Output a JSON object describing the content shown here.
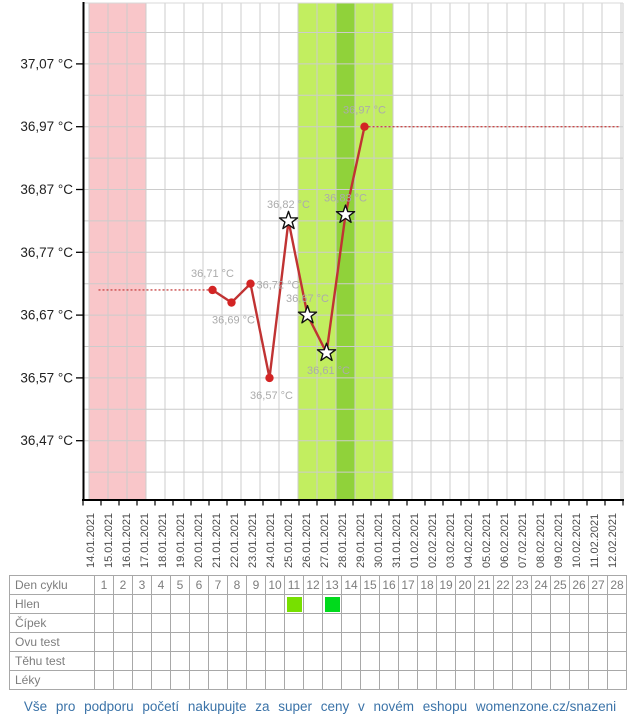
{
  "footer": {
    "text": "Vše pro podporu početí nakupujte za super ceny v novém eshopu womenzone.cz/snazeni",
    "color": "#3b73a8"
  },
  "table": {
    "header": {
      "label": "Den cyklu",
      "day_numbers": [
        "1",
        "2",
        "3",
        "4",
        "5",
        "6",
        "7",
        "8",
        "9",
        "10",
        "11",
        "12",
        "13",
        "14",
        "15",
        "16",
        "17",
        "18",
        "19",
        "20",
        "21",
        "22",
        "23",
        "24",
        "25",
        "26",
        "27",
        "28"
      ]
    },
    "rows": [
      {
        "key": "hlen",
        "label": "Hlen",
        "marks": [
          {
            "day": 11,
            "color": "#77e000"
          },
          {
            "day": 13,
            "color": "#00da1c"
          }
        ]
      },
      {
        "key": "cipek",
        "label": "Čípek",
        "marks": []
      },
      {
        "key": "ovu-test",
        "label": "Ovu test",
        "marks": []
      },
      {
        "key": "tehu-test",
        "label": "Těhu test",
        "marks": []
      },
      {
        "key": "leky",
        "label": "Léky",
        "marks": []
      }
    ]
  },
  "chart_data": {
    "type": "line",
    "title": "",
    "xlabel": "",
    "ylabel": "°C",
    "grid": true,
    "legend_position": "none",
    "y_axis": {
      "tick_labels": [
        "37,07 °C",
        "36,97 °C",
        "36,87 °C",
        "36,77 °C",
        "36,67 °C",
        "36,57 °C",
        "36,47 °C"
      ],
      "tick_values": [
        37.07,
        36.97,
        36.87,
        36.77,
        36.67,
        36.57,
        36.47
      ],
      "min": 36.37,
      "max": 37.17,
      "grid_step": 0.05
    },
    "x_axis": {
      "dates": [
        "14.01.2021",
        "15.01.2021",
        "16.01.2021",
        "17.01.2021",
        "18.01.2021",
        "19.01.2021",
        "20.01.2021",
        "21.01.2021",
        "22.01.2021",
        "23.01.2021",
        "24.01.2021",
        "25.01.2021",
        "26.01.2021",
        "27.01.2021",
        "28.01.2021",
        "29.01.2021",
        "30.01.2021",
        "31.01.2021",
        "01.02.2021",
        "02.02.2021",
        "03.02.2021",
        "04.02.2021",
        "05.02.2021",
        "06.02.2021",
        "07.02.2021",
        "08.02.2021",
        "09.02.2021",
        "10.02.2021",
        "11.02.2021",
        "12.02.2021"
      ]
    },
    "series": [
      {
        "name": "basal-body-temperature",
        "line_color": "#c03333",
        "marker_color": "#d32424",
        "star_fill": "#ffffff",
        "star_stroke": "#111111",
        "label_color": "#ababab",
        "points": [
          {
            "day": 7,
            "date": "20.01.2021",
            "temp": 36.71,
            "label": "36,71 °C",
            "star": false,
            "label_pos": "above"
          },
          {
            "day": 8,
            "date": "21.01.2021",
            "temp": 36.69,
            "label": "36,69 °C",
            "star": false,
            "label_pos": "below"
          },
          {
            "day": 9,
            "date": "22.01.2021",
            "temp": 36.72,
            "label": "36,72 °C",
            "star": false,
            "label_pos": "right"
          },
          {
            "day": 10,
            "date": "23.01.2021",
            "temp": 36.57,
            "label": "36,57 °C",
            "star": false,
            "label_pos": "below"
          },
          {
            "day": 11,
            "date": "24.01.2021",
            "temp": 36.82,
            "label": "36,82 °C",
            "star": true,
            "label_pos": "above"
          },
          {
            "day": 12,
            "date": "25.01.2021",
            "temp": 36.67,
            "label": "36,67 °C",
            "star": true,
            "label_pos": "above"
          },
          {
            "day": 13,
            "date": "26.01.2021",
            "temp": 36.61,
            "label": "36,61 °C",
            "star": true,
            "label_pos": "below"
          },
          {
            "day": 14,
            "date": "27.01.2021",
            "temp": 36.83,
            "label": "36,83 °C",
            "star": true,
            "label_pos": "above"
          },
          {
            "day": 15,
            "date": "28.01.2021",
            "temp": 36.97,
            "label": "36,97 °C",
            "star": false,
            "label_pos": "above"
          }
        ]
      }
    ],
    "reference_lines": [
      {
        "temp": 36.71,
        "from_day": 1,
        "to_day": 7,
        "style": "dotted",
        "color": "#c94a4a"
      },
      {
        "temp": 36.97,
        "from_day": 15,
        "to_day": 28,
        "style": "dotted",
        "color": "#c94a4a"
      }
    ],
    "regions": [
      {
        "name": "menstruation",
        "from_day": 1,
        "to_day": 3,
        "color": "#f9c6c9"
      },
      {
        "name": "fertile-window",
        "from_day": 12,
        "to_day": 16,
        "color": "#c2ee60"
      },
      {
        "name": "ovulation-day",
        "from_day": 14,
        "to_day": 14,
        "color": "#90d23a"
      }
    ]
  }
}
